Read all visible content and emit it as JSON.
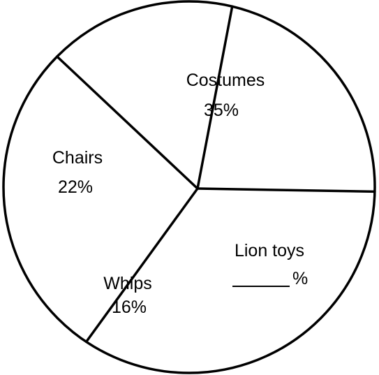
{
  "chart_data": {
    "type": "pie",
    "title": "",
    "slices": [
      {
        "label": "Costumes",
        "value": 35,
        "value_text": "35%"
      },
      {
        "label": "Lion toys",
        "value": 27,
        "value_text": "%"
      },
      {
        "label": "Whips",
        "value": 16,
        "value_text": "16%"
      },
      {
        "label": "Chairs",
        "value": 22,
        "value_text": "22%"
      }
    ],
    "colors": {
      "stroke": "#000000",
      "fill": "#ffffff"
    }
  }
}
